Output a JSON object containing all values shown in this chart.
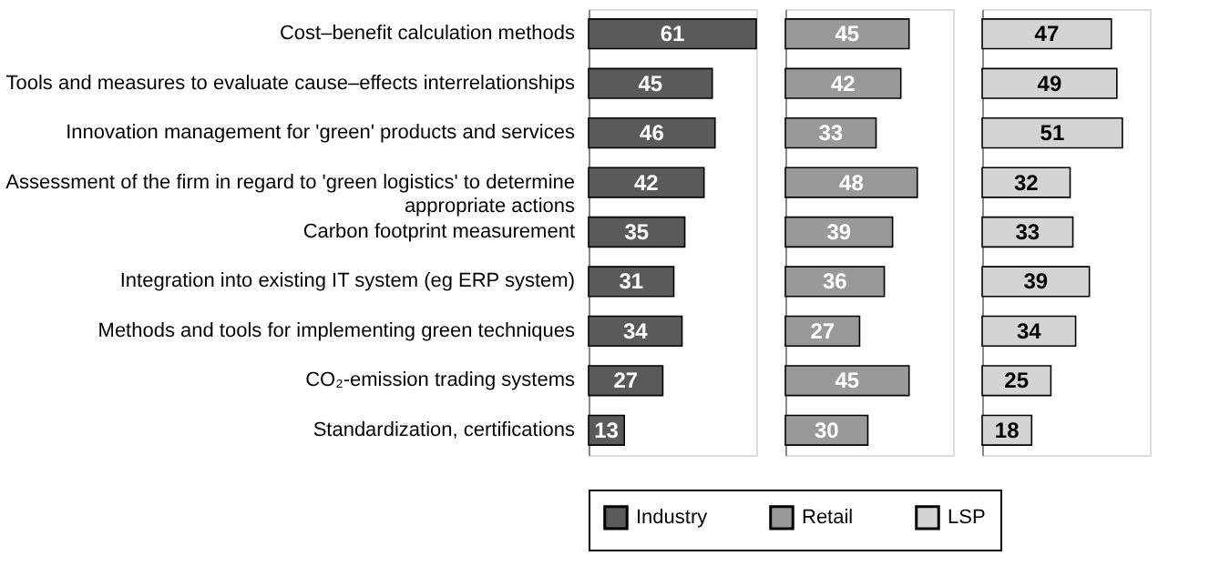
{
  "chart_data": [
    {
      "type": "bar",
      "orientation": "horizontal",
      "data_labels": true,
      "legend": "bottom",
      "categories": [
        "Cost–benefit calculation methods",
        "Tools and measures to evaluate cause–effects interrelationships",
        "Innovation management for 'green' products and services",
        "Assessment of the firm in regard to 'green logistics' to determine appropriate actions",
        "Carbon footprint measurement",
        "Integration into existing IT system (eg ERP system)",
        "Methods and tools for implementing green techniques",
        "CO₂-emission trading systems",
        "Standardization, certifications"
      ],
      "series": [
        {
          "name": "Industry",
          "color": "#5a5a5a",
          "values": [
            61,
            45,
            46,
            42,
            35,
            31,
            34,
            27,
            13
          ]
        }
      ]
    },
    {
      "type": "bar",
      "orientation": "horizontal",
      "data_labels": true,
      "legend": "bottom",
      "tick_labels": false,
      "categories": [
        "Cost–benefit calculation methods",
        "Tools and measures to evaluate cause–effects interrelationships",
        "Innovation management for 'green' products and services",
        "Assessment of the firm in regard to 'green logistics' to determine appropriate actions",
        "Carbon footprint measurement",
        "Integration into existing IT system (eg ERP system)",
        "Methods and tools for implementing green techniques",
        "CO₂-emission trading systems",
        "Standardization, certifications"
      ],
      "series": [
        {
          "name": "Retail",
          "color": "#999999",
          "values": [
            45,
            42,
            33,
            48,
            39,
            36,
            27,
            45,
            30
          ]
        }
      ]
    },
    {
      "type": "bar",
      "orientation": "horizontal",
      "data_labels": true,
      "legend": "bottom",
      "tick_labels": false,
      "categories": [
        "Cost–benefit calculation methods",
        "Tools and measures to evaluate cause–effects interrelationships",
        "Innovation management for 'green' products and services",
        "Assessment of the firm in regard to 'green logistics' to determine appropriate actions",
        "Carbon footprint measurement",
        "Integration into existing IT system (eg ERP system)",
        "Methods and tools for implementing green techniques",
        "CO₂-emission trading systems",
        "Standardization, certifications"
      ],
      "series": [
        {
          "name": "LSP",
          "color": "#d4d4d4",
          "values": [
            47,
            49,
            51,
            32,
            33,
            39,
            34,
            25,
            18
          ]
        }
      ]
    }
  ]
}
